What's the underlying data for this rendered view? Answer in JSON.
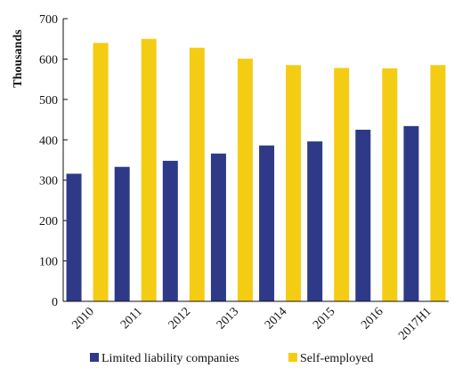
{
  "chart_data": {
    "type": "bar",
    "categories": [
      "2010",
      "2011",
      "2012",
      "2013",
      "2014",
      "2015",
      "2016",
      "2017H1"
    ],
    "series": [
      {
        "name": "Limited liability companies",
        "color": "#2e3a87",
        "values": [
          316,
          333,
          348,
          366,
          386,
          396,
          425,
          434
        ]
      },
      {
        "name": "Self-employed",
        "color": "#f5cc14",
        "values": [
          640,
          650,
          628,
          601,
          585,
          578,
          577,
          585
        ]
      }
    ],
    "title": "",
    "xlabel": "",
    "ylabel": "Thousands",
    "ylim": [
      0,
      700
    ],
    "yticks": [
      0,
      100,
      200,
      300,
      400,
      500,
      600,
      700
    ],
    "grid": false,
    "legend_position": "bottom"
  }
}
